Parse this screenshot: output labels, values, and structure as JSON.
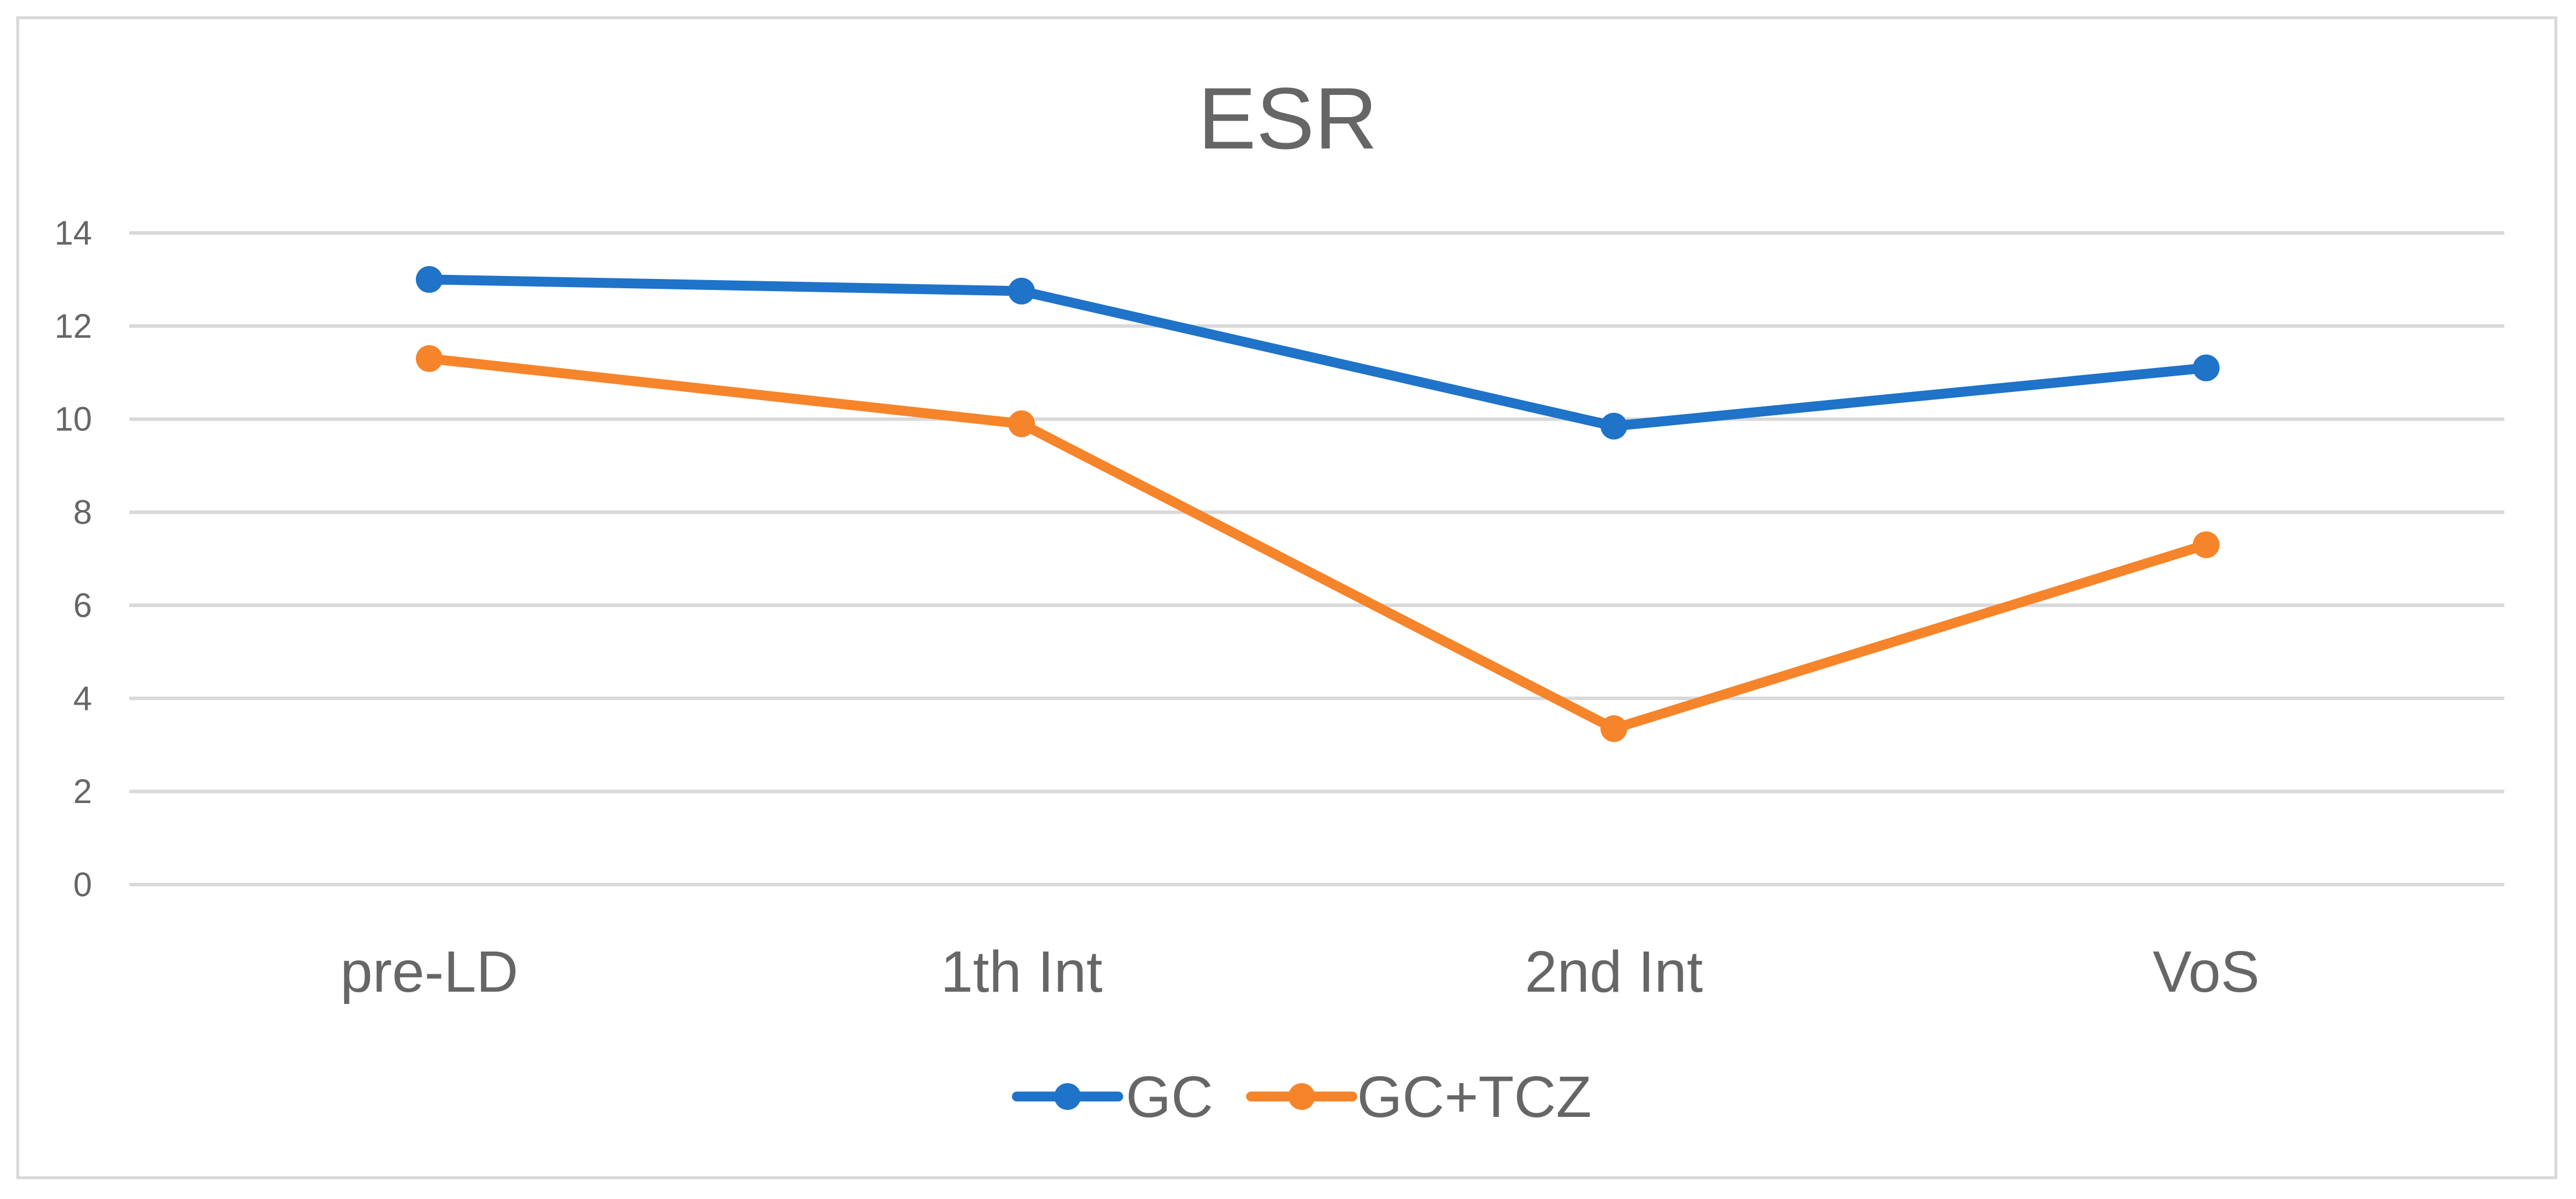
{
  "chart_data": {
    "type": "line",
    "title": "ESR",
    "xlabel": "",
    "ylabel": "",
    "categories": [
      "pre-LD",
      "1th Int",
      "2nd Int",
      "VoS"
    ],
    "ylim": [
      0,
      14
    ],
    "yticks": [
      0,
      2,
      4,
      6,
      8,
      10,
      12,
      14
    ],
    "ytick_labels": [
      "0",
      "2",
      "4",
      "6",
      "8",
      "10",
      "12",
      "14"
    ],
    "grid": true,
    "legend_position": "bottom",
    "series": [
      {
        "name": "GC",
        "color": "#1f73c8",
        "values": [
          13.0,
          12.75,
          9.85,
          11.1
        ]
      },
      {
        "name": "GC+TCZ",
        "color": "#f6842a",
        "values": [
          11.3,
          9.9,
          3.35,
          7.3
        ]
      }
    ]
  }
}
